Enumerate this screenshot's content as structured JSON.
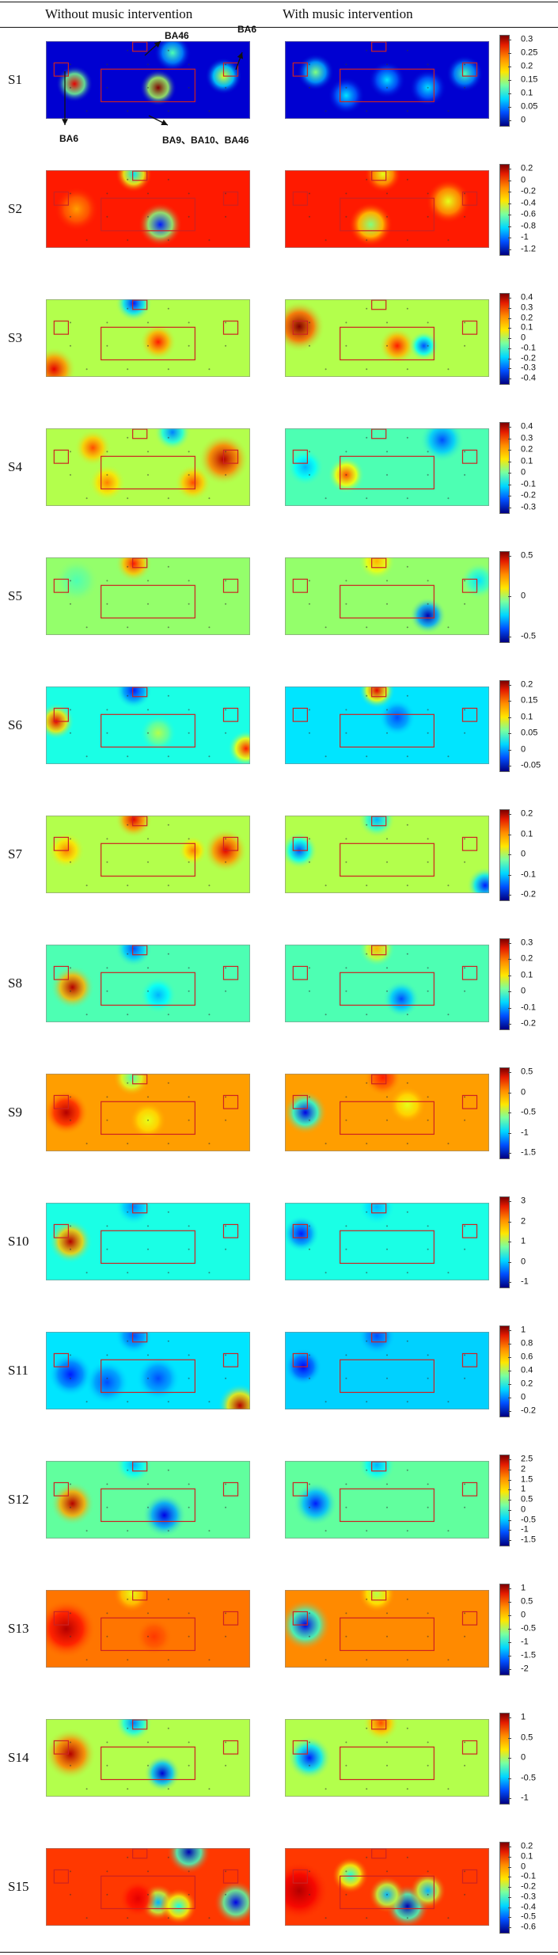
{
  "column_headers": {
    "left": "Without music intervention",
    "right": "With music intervention"
  },
  "annotations": {
    "top_center": "BA46",
    "top_right": "BA6",
    "left_bottom": "BA6",
    "center_bottom": "BA9、BA10、BA46"
  },
  "colormap": "jet",
  "region_box_color": "#cc2222",
  "subjects": [
    {
      "label": "S1",
      "ticks": [
        "0.3",
        "0.25",
        "0.2",
        "0.15",
        "0.1",
        "0.05",
        "0"
      ],
      "base": [
        0.08,
        0.08
      ],
      "spots": [
        [
          [
            0.14,
            0.55,
            0.05,
            0.9
          ],
          [
            0.55,
            0.6,
            0.05,
            1.0
          ],
          [
            0.87,
            0.45,
            0.05,
            0.6
          ],
          [
            0.62,
            0.15,
            0.05,
            0.45
          ]
        ],
        [
          [
            0.15,
            0.4,
            0.05,
            0.5
          ],
          [
            0.88,
            0.42,
            0.05,
            0.45
          ],
          [
            0.3,
            0.7,
            0.05,
            0.35
          ],
          [
            0.5,
            0.5,
            0.05,
            0.35
          ],
          [
            0.7,
            0.6,
            0.05,
            0.35
          ]
        ]
      ]
    },
    {
      "label": "S2",
      "ticks": [
        "0.2",
        "0",
        "-0.2",
        "-0.4",
        "-0.6",
        "-0.8",
        "-1",
        "-1.2"
      ],
      "base": [
        0.85,
        0.85
      ],
      "spots": [
        [
          [
            0.56,
            0.7,
            0.06,
            0.15
          ],
          [
            0.43,
            0.05,
            0.05,
            0.35
          ],
          [
            0.15,
            0.5,
            0.06,
            0.72
          ]
        ],
        [
          [
            0.42,
            0.7,
            0.06,
            0.5
          ],
          [
            0.48,
            0.05,
            0.05,
            0.6
          ],
          [
            0.8,
            0.4,
            0.06,
            0.6
          ]
        ]
      ]
    },
    {
      "label": "S3",
      "ticks": [
        "0.4",
        "0.3",
        "0.2",
        "0.1",
        "0",
        "-0.1",
        "-0.2",
        "-0.3",
        "-0.4"
      ],
      "base": [
        0.55,
        0.55
      ],
      "spots": [
        [
          [
            0.55,
            0.55,
            0.05,
            0.85
          ],
          [
            0.43,
            0.05,
            0.05,
            0.15
          ],
          [
            0.04,
            0.9,
            0.06,
            0.9
          ]
        ],
        [
          [
            0.07,
            0.35,
            0.07,
            1.0
          ],
          [
            0.55,
            0.6,
            0.05,
            0.85
          ],
          [
            0.68,
            0.6,
            0.04,
            0.2
          ]
        ]
      ]
    },
    {
      "label": "S4",
      "ticks": [
        "0.4",
        "0.3",
        "0.2",
        "0.1",
        "0",
        "-0.1",
        "-0.2",
        "-0.3"
      ],
      "base": [
        0.55,
        0.45
      ],
      "spots": [
        [
          [
            0.23,
            0.25,
            0.05,
            0.8
          ],
          [
            0.3,
            0.7,
            0.05,
            0.75
          ],
          [
            0.72,
            0.7,
            0.05,
            0.8
          ],
          [
            0.87,
            0.4,
            0.07,
            0.95
          ],
          [
            0.62,
            0.05,
            0.05,
            0.25
          ]
        ],
        [
          [
            0.3,
            0.6,
            0.05,
            0.8
          ],
          [
            0.77,
            0.15,
            0.06,
            0.2
          ],
          [
            0.1,
            0.5,
            0.05,
            0.3
          ]
        ]
      ]
    },
    {
      "label": "S5",
      "ticks": [
        "0.5",
        "0",
        "-0.5"
      ],
      "base": [
        0.52,
        0.52
      ],
      "spots": [
        [
          [
            0.43,
            0.08,
            0.05,
            0.85
          ],
          [
            0.15,
            0.3,
            0.06,
            0.45
          ]
        ],
        [
          [
            0.7,
            0.75,
            0.05,
            0.05
          ],
          [
            0.45,
            0.05,
            0.05,
            0.7
          ],
          [
            0.95,
            0.3,
            0.05,
            0.35
          ]
        ]
      ]
    },
    {
      "label": "S6",
      "ticks": [
        "0.2",
        "0.15",
        "0.1",
        "0.05",
        "0",
        "-0.05"
      ],
      "base": [
        0.4,
        0.35
      ],
      "spots": [
        [
          [
            0.05,
            0.45,
            0.05,
            0.9
          ],
          [
            0.43,
            0.05,
            0.05,
            0.15
          ],
          [
            0.98,
            0.8,
            0.05,
            0.85
          ],
          [
            0.55,
            0.6,
            0.05,
            0.55
          ]
        ],
        [
          [
            0.45,
            0.05,
            0.05,
            0.9
          ],
          [
            0.55,
            0.4,
            0.05,
            0.2
          ]
        ]
      ]
    },
    {
      "label": "S7",
      "ticks": [
        "0.2",
        "0.1",
        "0",
        "-0.1",
        "-0.2"
      ],
      "base": [
        0.55,
        0.55
      ],
      "spots": [
        [
          [
            0.43,
            0.05,
            0.05,
            0.9
          ],
          [
            0.88,
            0.45,
            0.06,
            0.9
          ],
          [
            0.1,
            0.45,
            0.05,
            0.75
          ],
          [
            0.72,
            0.45,
            0.04,
            0.75
          ]
        ],
        [
          [
            0.07,
            0.45,
            0.05,
            0.2
          ],
          [
            0.45,
            0.05,
            0.05,
            0.3
          ],
          [
            0.98,
            0.9,
            0.05,
            0.15
          ]
        ]
      ]
    },
    {
      "label": "S8",
      "ticks": [
        "0.3",
        "0.2",
        "0.1",
        "0",
        "-0.1",
        "-0.2"
      ],
      "base": [
        0.45,
        0.45
      ],
      "spots": [
        [
          [
            0.13,
            0.55,
            0.06,
            0.95
          ],
          [
            0.43,
            0.05,
            0.05,
            0.2
          ],
          [
            0.55,
            0.65,
            0.05,
            0.3
          ]
        ],
        [
          [
            0.57,
            0.7,
            0.05,
            0.2
          ],
          [
            0.45,
            0.05,
            0.05,
            0.7
          ]
        ]
      ]
    },
    {
      "label": "S9",
      "ticks": [
        "0.5",
        "0",
        "-0.5",
        "-1",
        "-1.5"
      ],
      "base": [
        0.72,
        0.72
      ],
      "spots": [
        [
          [
            0.1,
            0.5,
            0.06,
            0.95
          ],
          [
            0.42,
            0.05,
            0.05,
            0.45
          ],
          [
            0.5,
            0.6,
            0.05,
            0.6
          ]
        ],
        [
          [
            0.1,
            0.5,
            0.06,
            0.1
          ],
          [
            0.48,
            0.05,
            0.05,
            0.85
          ],
          [
            0.6,
            0.4,
            0.05,
            0.6
          ]
        ]
      ]
    },
    {
      "label": "S10",
      "ticks": [
        "3",
        "2",
        "1",
        "0",
        "-1"
      ],
      "base": [
        0.4,
        0.4
      ],
      "spots": [
        [
          [
            0.12,
            0.5,
            0.06,
            0.95
          ],
          [
            0.43,
            0.05,
            0.05,
            0.25
          ]
        ],
        [
          [
            0.08,
            0.4,
            0.05,
            0.15
          ],
          [
            0.45,
            0.05,
            0.05,
            0.3
          ]
        ]
      ]
    },
    {
      "label": "S11",
      "ticks": [
        "1",
        "0.8",
        "0.6",
        "0.4",
        "0.2",
        "0",
        "-0.2"
      ],
      "base": [
        0.35,
        0.33
      ],
      "spots": [
        [
          [
            0.12,
            0.55,
            0.06,
            0.15
          ],
          [
            0.3,
            0.65,
            0.06,
            0.2
          ],
          [
            0.55,
            0.6,
            0.06,
            0.2
          ],
          [
            0.95,
            0.95,
            0.06,
            0.95
          ],
          [
            0.43,
            0.05,
            0.05,
            0.2
          ]
        ],
        [
          [
            0.09,
            0.45,
            0.05,
            0.12
          ],
          [
            0.45,
            0.05,
            0.05,
            0.2
          ]
        ]
      ]
    },
    {
      "label": "S12",
      "ticks": [
        "2.5",
        "2",
        "1.5",
        "1",
        "0.5",
        "0",
        "-0.5",
        "-1",
        "-1.5"
      ],
      "base": [
        0.47,
        0.47
      ],
      "spots": [
        [
          [
            0.13,
            0.55,
            0.06,
            0.95
          ],
          [
            0.58,
            0.7,
            0.06,
            0.1
          ],
          [
            0.43,
            0.05,
            0.05,
            0.3
          ]
        ],
        [
          [
            0.15,
            0.55,
            0.06,
            0.15
          ],
          [
            0.45,
            0.05,
            0.05,
            0.3
          ]
        ]
      ]
    },
    {
      "label": "S13",
      "ticks": [
        "1",
        "0.5",
        "0",
        "-0.5",
        "-1",
        "-1.5",
        "-2"
      ],
      "base": [
        0.76,
        0.74
      ],
      "spots": [
        [
          [
            0.1,
            0.5,
            0.08,
            0.95
          ],
          [
            0.53,
            0.6,
            0.05,
            0.82
          ],
          [
            0.42,
            0.05,
            0.05,
            0.6
          ]
        ],
        [
          [
            0.1,
            0.45,
            0.07,
            0.1
          ],
          [
            0.45,
            0.05,
            0.05,
            0.55
          ]
        ]
      ]
    },
    {
      "label": "S14",
      "ticks": [
        "1",
        "0.5",
        "0",
        "-0.5",
        "-1"
      ],
      "base": [
        0.55,
        0.55
      ],
      "spots": [
        [
          [
            0.12,
            0.45,
            0.07,
            0.95
          ],
          [
            0.57,
            0.7,
            0.05,
            0.08
          ],
          [
            0.43,
            0.05,
            0.05,
            0.25
          ]
        ],
        [
          [
            0.12,
            0.5,
            0.06,
            0.15
          ],
          [
            0.47,
            0.05,
            0.05,
            0.8
          ]
        ]
      ]
    },
    {
      "label": "S15",
      "ticks": [
        "0.2",
        "0.1",
        "0",
        "-0.1",
        "-0.2",
        "-0.3",
        "-0.4",
        "-0.5",
        "-0.6"
      ],
      "base": [
        0.82,
        0.82
      ],
      "spots": [
        [
          [
            0.7,
            0.05,
            0.06,
            0.05
          ],
          [
            0.93,
            0.7,
            0.06,
            0.1
          ],
          [
            0.55,
            0.7,
            0.05,
            0.3
          ],
          [
            0.65,
            0.75,
            0.05,
            0.4
          ],
          [
            0.45,
            0.65,
            0.05,
            0.9
          ]
        ],
        [
          [
            0.6,
            0.75,
            0.06,
            0.05
          ],
          [
            0.5,
            0.6,
            0.05,
            0.3
          ],
          [
            0.32,
            0.35,
            0.05,
            0.4
          ],
          [
            0.7,
            0.55,
            0.05,
            0.3
          ],
          [
            0.07,
            0.55,
            0.08,
            0.95
          ]
        ]
      ]
    }
  ]
}
